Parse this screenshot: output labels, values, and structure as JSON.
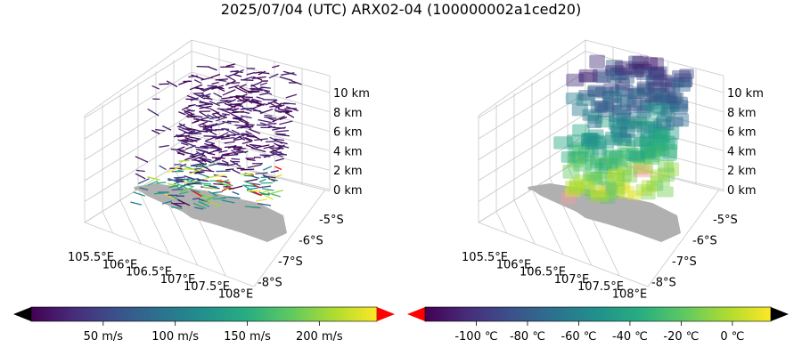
{
  "title": "2025/07/04 (UTC) ARX02-04 (100000002a1ced20)",
  "chart_data": [
    {
      "type": "3d-scatter",
      "variable": "wind",
      "x_ticks": [
        "105.5°E",
        "106°E",
        "106.5°E",
        "107°E",
        "107.5°E",
        "108°E"
      ],
      "y_ticks": [
        "-5°S",
        "-6°S",
        "-7°S",
        "-8°S"
      ],
      "z_ticks": [
        "0 km",
        "2 km",
        "4 km",
        "6 km",
        "8 km",
        "10 km"
      ],
      "colorbar": {
        "colormap": "viridis",
        "ticks": [
          "50 m/s",
          "100 m/s",
          "150 m/s",
          "200 m/s"
        ],
        "tick_values": [
          50,
          100,
          150,
          200
        ],
        "range": [
          0,
          240
        ],
        "extend_min_color": "#000000",
        "extend_max_color": "#ff0000"
      }
    },
    {
      "type": "3d-scatter",
      "variable": "temperature",
      "x_ticks": [
        "105.5°E",
        "106°E",
        "106.5°E",
        "107°E",
        "107.5°E",
        "108°E"
      ],
      "y_ticks": [
        "-5°S",
        "-6°S",
        "-7°S",
        "-8°S"
      ],
      "z_ticks": [
        "0 km",
        "2 km",
        "4 km",
        "6 km",
        "8 km",
        "10 km"
      ],
      "colorbar": {
        "colormap": "viridis",
        "ticks": [
          "-100 ℃",
          "-80 ℃",
          "-60 ℃",
          "-40 ℃",
          "-20 ℃",
          "0 ℃"
        ],
        "tick_values": [
          -100,
          -80,
          -60,
          -40,
          -20,
          0
        ],
        "range": [
          -120,
          15
        ],
        "extend_min_color": "#ff0000",
        "extend_max_color": "#000000"
      }
    }
  ]
}
